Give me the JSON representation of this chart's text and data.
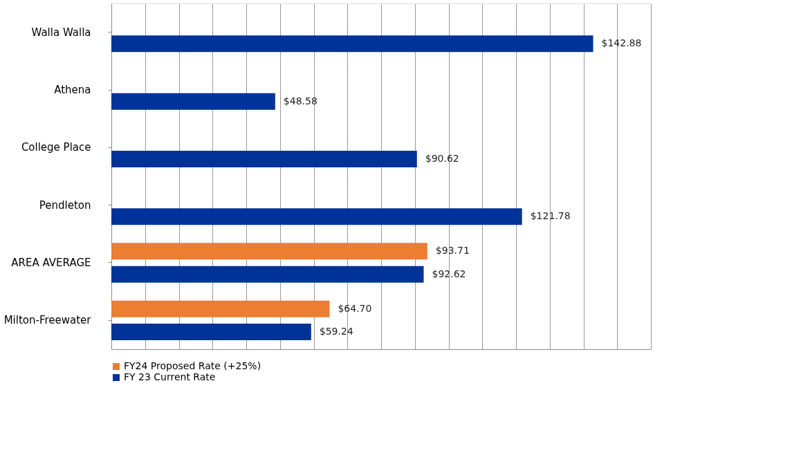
{
  "chart_data": {
    "type": "bar",
    "orientation": "horizontal",
    "categories": [
      "Walla Walla",
      "Athena",
      "College Place",
      "Pendleton",
      "AREA AVERAGE",
      "Milton-Freewater"
    ],
    "series": [
      {
        "name": "FY24 Proposed Rate (+25%)",
        "color": "#ed7d31",
        "values": [
          null,
          null,
          null,
          null,
          93.71,
          64.7
        ],
        "value_labels": [
          null,
          null,
          null,
          null,
          "$93.71",
          "$64.70"
        ]
      },
      {
        "name": "FY 23 Current Rate",
        "color": "#003399",
        "values": [
          142.88,
          48.58,
          90.62,
          121.78,
          92.62,
          59.24
        ],
        "value_labels": [
          "$142.88",
          "$48.58",
          "$90.62",
          "$121.78",
          "$92.62",
          "$59.24"
        ]
      }
    ],
    "xlim": [
      0,
      160
    ],
    "xticks": [
      {
        "value": 0,
        "label": null
      },
      {
        "value": 10,
        "label": null
      },
      {
        "value": 20,
        "label": null
      },
      {
        "value": 30,
        "label": null
      },
      {
        "value": 40,
        "label": null
      },
      {
        "value": 50,
        "label": null
      },
      {
        "value": 60,
        "label": null
      },
      {
        "value": 70,
        "label": null
      },
      {
        "value": 80,
        "label": null
      },
      {
        "value": 90,
        "label": null
      },
      {
        "value": 100,
        "label": null
      },
      {
        "value": 110,
        "label": null
      },
      {
        "value": 120,
        "label": null
      },
      {
        "value": 130,
        "label": null
      },
      {
        "value": 140,
        "label": null
      },
      {
        "value": 150,
        "label": null
      },
      {
        "value": 160,
        "label": null
      }
    ],
    "tick_labels": "y",
    "grid": "x",
    "legend": "bottom"
  }
}
